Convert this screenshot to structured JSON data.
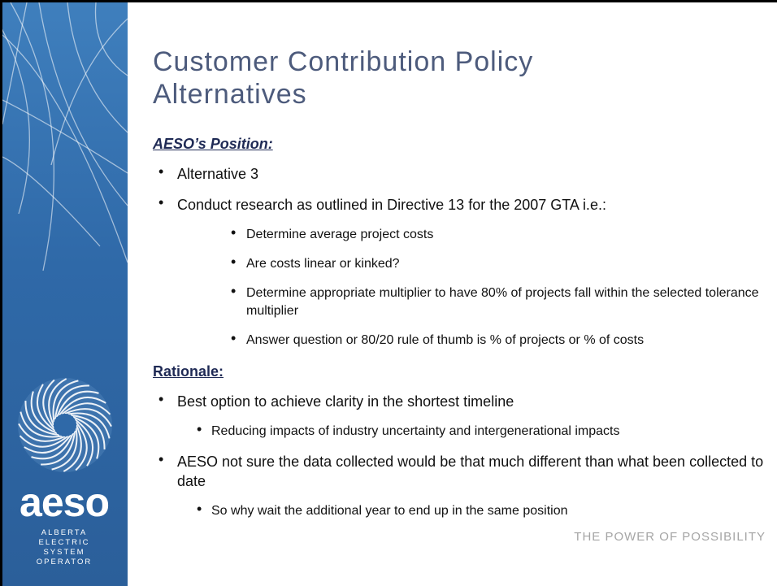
{
  "sidebar": {
    "logo": "aeso",
    "subtitle": [
      "ALBERTA",
      "ELECTRIC",
      "SYSTEM",
      "OPERATOR"
    ]
  },
  "title_lines": [
    "Customer Contribution Policy",
    "Alternatives"
  ],
  "sections": [
    {
      "heading": "AESO’s Position:",
      "italic": true,
      "items": [
        {
          "text": "Alternative 3",
          "level": 1
        },
        {
          "text": "Conduct research as outlined in Directive 13 for the 2007 GTA i.e.:",
          "level": 1
        },
        {
          "text": "Determine average project costs",
          "level": 2
        },
        {
          "text": "Are costs linear or kinked?",
          "level": 2
        },
        {
          "text": "Determine appropriate multiplier to have 80% of projects fall within the selected tolerance multiplier",
          "level": 2
        },
        {
          "text": "Answer question or 80/20 rule of thumb is % of projects or % of costs",
          "level": 2
        }
      ]
    },
    {
      "heading": "Rationale:",
      "italic": false,
      "items": [
        {
          "text": "Best option to achieve clarity in the shortest timeline",
          "level": 1
        },
        {
          "text": "Reducing impacts of industry uncertainty and intergenerational impacts",
          "level": 3
        },
        {
          "text": "AESO not sure the data collected would be that much different than what been collected to date",
          "level": 1
        },
        {
          "text": "So why wait the additional year to end up in the same position",
          "level": 3
        }
      ]
    }
  ],
  "footer": "THE POWER OF POSSIBILITY"
}
